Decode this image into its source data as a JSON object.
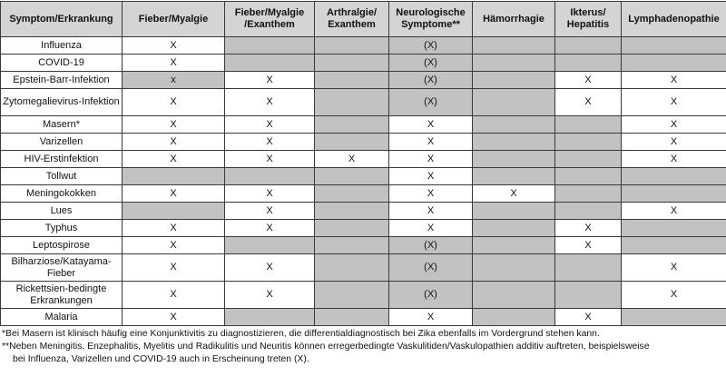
{
  "table": {
    "headers": [
      "Symptom/Erkrankung",
      "Fieber/Myalgie",
      "Fieber/Myalgie /Exanthem",
      "Arthralgie/ Exanthem",
      "Neurologische Symptome**",
      "Hämorrhagie",
      "Ikterus/ Hepatitis",
      "Lymphadenopathie"
    ],
    "rows": [
      {
        "name": "Influenza",
        "cells": [
          [
            "X",
            0
          ],
          [
            "",
            1
          ],
          [
            "",
            1
          ],
          [
            "(X)",
            1
          ],
          [
            "",
            1
          ],
          [
            "",
            1
          ],
          [
            "",
            1
          ]
        ]
      },
      {
        "name": "COVID-19",
        "cells": [
          [
            "X",
            0
          ],
          [
            "",
            1
          ],
          [
            "",
            1
          ],
          [
            "(X)",
            1
          ],
          [
            "",
            1
          ],
          [
            "",
            1
          ],
          [
            "",
            1
          ]
        ]
      },
      {
        "name": "Epstein-Barr-Infektion",
        "cells": [
          [
            "x",
            1
          ],
          [
            "X",
            0
          ],
          [
            "",
            1
          ],
          [
            "(X)",
            1
          ],
          [
            "",
            1
          ],
          [
            "X",
            0
          ],
          [
            "X",
            0
          ]
        ]
      },
      {
        "name": "Zytomegalievirus-Infektion",
        "tall": true,
        "cells": [
          [
            "X",
            0
          ],
          [
            "X",
            0
          ],
          [
            "",
            1
          ],
          [
            "(X)",
            1
          ],
          [
            "",
            1
          ],
          [
            "X",
            0
          ],
          [
            "X",
            0
          ]
        ]
      },
      {
        "name": "Masern*",
        "cells": [
          [
            "X",
            0
          ],
          [
            "X",
            0
          ],
          [
            "",
            1
          ],
          [
            "X",
            0
          ],
          [
            "",
            1
          ],
          [
            "",
            1
          ],
          [
            "X",
            0
          ]
        ]
      },
      {
        "name": "Varizellen",
        "cells": [
          [
            "X",
            0
          ],
          [
            "X",
            0
          ],
          [
            "",
            1
          ],
          [
            "X",
            0
          ],
          [
            "",
            1
          ],
          [
            "",
            1
          ],
          [
            "X",
            0
          ]
        ]
      },
      {
        "name": "HIV-Erstinfektion",
        "cells": [
          [
            "X",
            0
          ],
          [
            "X",
            0
          ],
          [
            "X",
            0
          ],
          [
            "X",
            0
          ],
          [
            "",
            1
          ],
          [
            "",
            1
          ],
          [
            "X",
            0
          ]
        ]
      },
      {
        "name": "Tollwut",
        "cells": [
          [
            "",
            1
          ],
          [
            "",
            1
          ],
          [
            "",
            1
          ],
          [
            "X",
            0
          ],
          [
            "",
            1
          ],
          [
            "",
            1
          ],
          [
            "",
            1
          ]
        ]
      },
      {
        "name": "Meningokokken",
        "cells": [
          [
            "X",
            0
          ],
          [
            "X",
            0
          ],
          [
            "",
            1
          ],
          [
            "X",
            0
          ],
          [
            "X",
            0
          ],
          [
            "",
            1
          ],
          [
            "",
            1
          ]
        ]
      },
      {
        "name": "Lues",
        "cells": [
          [
            "",
            1
          ],
          [
            "X",
            0
          ],
          [
            "",
            1
          ],
          [
            "X",
            0
          ],
          [
            "",
            1
          ],
          [
            "",
            1
          ],
          [
            "X",
            0
          ]
        ]
      },
      {
        "name": "Typhus",
        "cells": [
          [
            "X",
            0
          ],
          [
            "X",
            0
          ],
          [
            "",
            1
          ],
          [
            "X",
            0
          ],
          [
            "",
            1
          ],
          [
            "X",
            0
          ],
          [
            "",
            1
          ]
        ]
      },
      {
        "name": "Leptospirose",
        "cells": [
          [
            "X",
            0
          ],
          [
            "",
            1
          ],
          [
            "",
            1
          ],
          [
            "(X)",
            1
          ],
          [
            "",
            1
          ],
          [
            "X",
            0
          ],
          [
            "",
            1
          ]
        ]
      },
      {
        "name": "Bilharziose/Katayama-Fieber",
        "tall": true,
        "cells": [
          [
            "X",
            0
          ],
          [
            "X",
            0
          ],
          [
            "",
            1
          ],
          [
            "(X)",
            1
          ],
          [
            "",
            1
          ],
          [
            "",
            1
          ],
          [
            "X",
            0
          ]
        ]
      },
      {
        "name": "Rickettsien-bedingte Erkrankungen",
        "tall": true,
        "cells": [
          [
            "X",
            0
          ],
          [
            "X",
            0
          ],
          [
            "",
            1
          ],
          [
            "(X)",
            1
          ],
          [
            "",
            1
          ],
          [
            "",
            1
          ],
          [
            "X",
            0
          ]
        ]
      },
      {
        "name": "Malaria",
        "cells": [
          [
            "X",
            0
          ],
          [
            "",
            1
          ],
          [
            "",
            1
          ],
          [
            "X",
            0
          ],
          [
            "",
            1
          ],
          [
            "X",
            0
          ],
          [
            "",
            1
          ]
        ]
      }
    ]
  },
  "colors": {
    "header_bg": "#d4d4d4",
    "shaded_cell": "#c2c2c2",
    "border": "#3a3a3a"
  },
  "footnotes": {
    "note1": "*Bei Masern ist klinisch häufig eine Konjunktivitis zu diagnostizieren, die differentialdiagnostisch bei Zika ebenfalls im Vordergrund stehen kann.",
    "note2_line1": "**Neben Meningitis, Enzephalitis, Myelitis und Radikulitis und Neuritis können erregerbedingte Vaskulitiden/Vaskulopathien additiv auftreten, beispielsweise",
    "note2_line2": "bei Influenza, Varizellen und COVID-19 auch in Erscheinung treten (X)."
  }
}
